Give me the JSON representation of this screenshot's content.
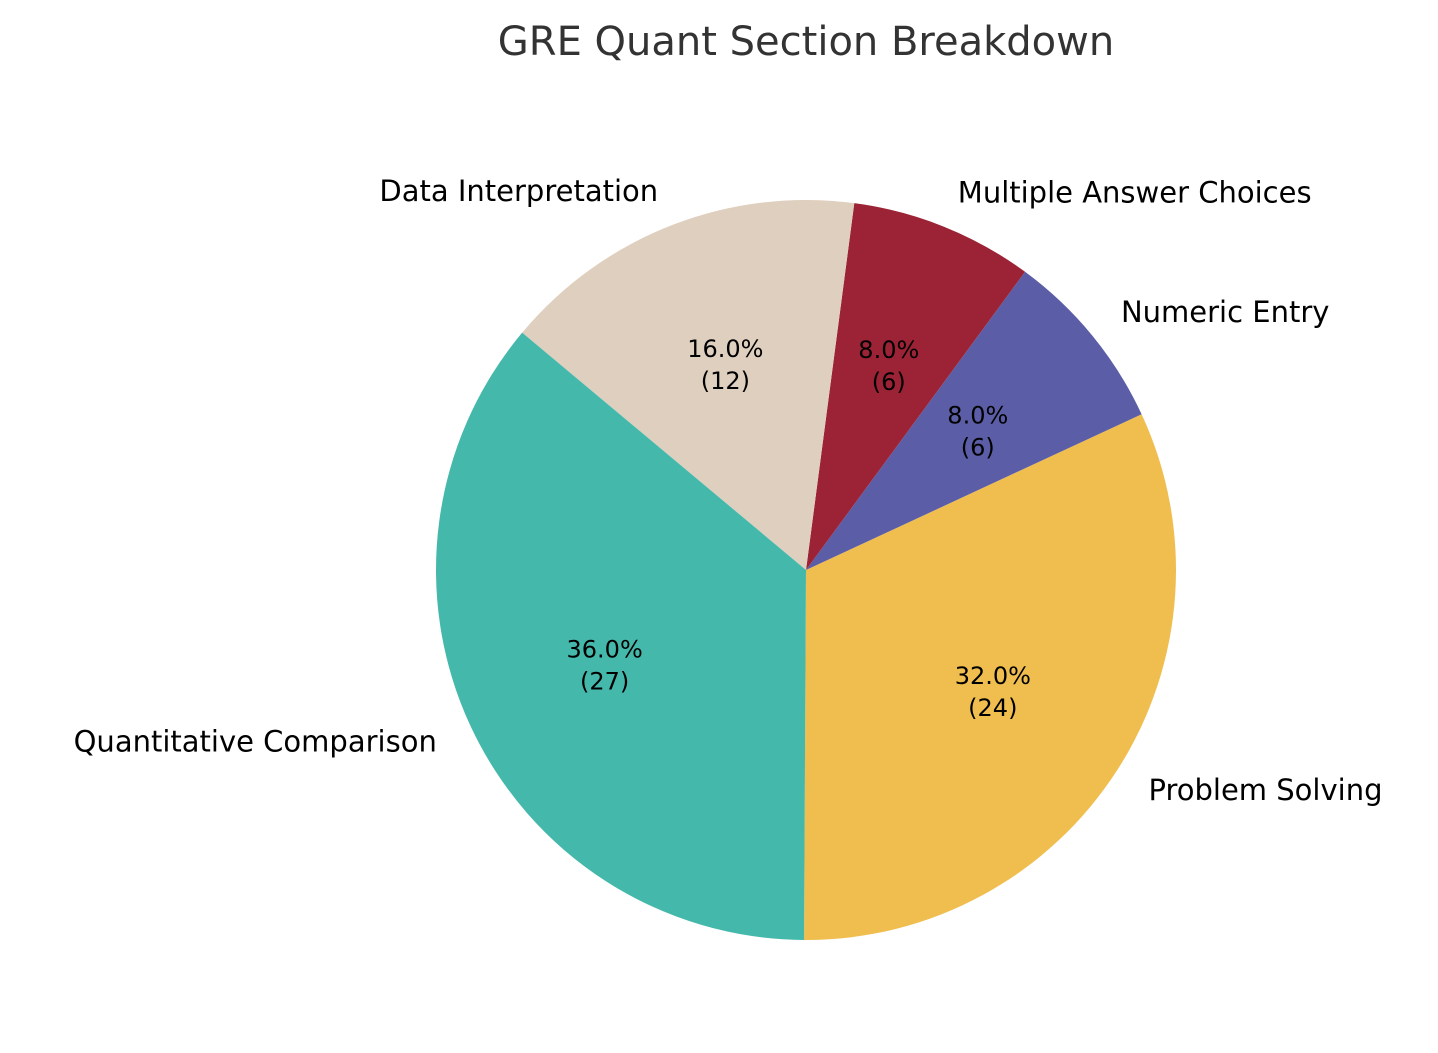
{
  "chart_data": {
    "type": "pie",
    "title": "GRE Quant Section Breakdown",
    "categories": [
      "Problem Solving",
      "Numeric Entry",
      "Multiple Answer Choices",
      "Data Interpretation",
      "Quantitative Comparison"
    ],
    "values": [
      24,
      6,
      6,
      12,
      27
    ],
    "percentages": [
      "32.0%",
      "8.0%",
      "8.0%",
      "16.0%",
      "36.0%"
    ],
    "colors": [
      "#EFBE4F",
      "#5B5EA6",
      "#9B2335",
      "#DFCFBE",
      "#45B8AC"
    ],
    "start_angle_deg": -90.3,
    "direction": "counterclockwise",
    "legend": "none"
  }
}
